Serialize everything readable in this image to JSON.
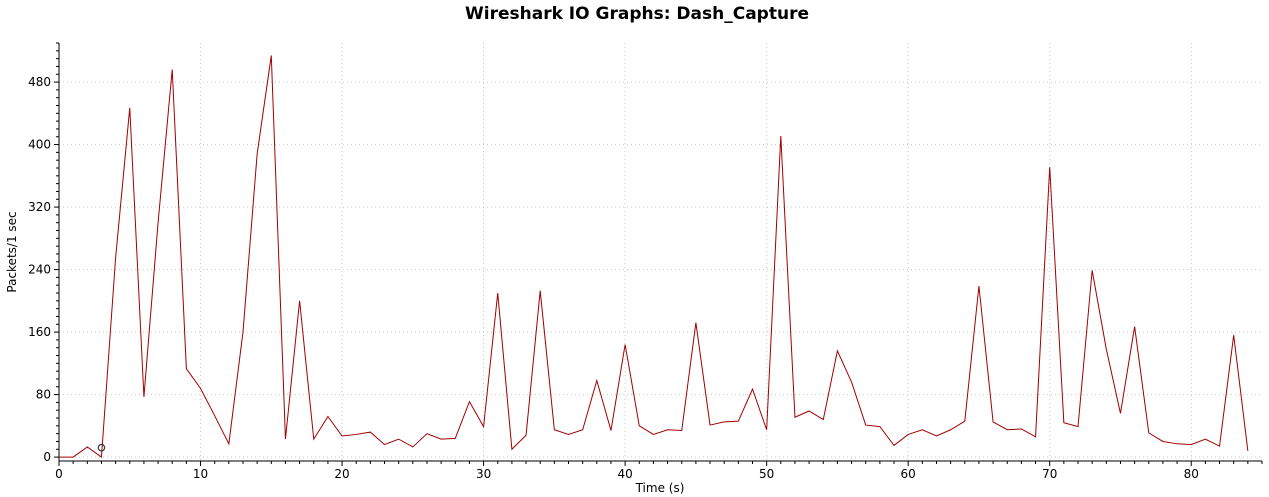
{
  "chart_data": {
    "type": "line",
    "title": "Wireshark IO Graphs: Dash_Capture",
    "xlabel": "Time (s)",
    "ylabel": "Packets/1 sec",
    "xlim": [
      0,
      85
    ],
    "ylim": [
      -5,
      530
    ],
    "x_ticks": [
      0,
      10,
      20,
      30,
      40,
      50,
      60,
      70,
      80
    ],
    "y_ticks": [
      0,
      80,
      160,
      240,
      320,
      400,
      480
    ],
    "grid": true,
    "series_color": "#a00000",
    "series": [
      {
        "x": [
          0,
          1,
          2,
          3,
          4,
          5,
          6,
          7,
          8,
          9,
          10,
          11,
          12,
          13,
          14,
          15,
          16,
          17,
          18,
          19,
          20,
          21,
          22,
          23,
          24,
          25,
          26,
          27,
          28,
          29,
          30,
          31,
          32,
          33,
          34,
          35,
          36,
          37,
          38,
          39,
          40,
          41,
          42,
          43,
          44,
          45,
          46,
          47,
          48,
          49,
          50,
          51,
          52,
          53,
          54,
          55,
          56,
          57,
          58,
          59,
          60,
          61,
          62,
          63,
          64,
          65,
          66,
          67,
          68,
          69,
          70,
          71,
          72,
          73,
          74,
          75,
          76,
          77,
          78,
          79,
          80,
          81,
          82,
          83,
          84
        ],
        "values": [
          0,
          0,
          13,
          0,
          255,
          447,
          77,
          300,
          496,
          113,
          88,
          53,
          17,
          160,
          388,
          514,
          23,
          200,
          23,
          52,
          27,
          29,
          32,
          16,
          23,
          13,
          30,
          23,
          24,
          71,
          39,
          210,
          10,
          28,
          213,
          35,
          29,
          35,
          98,
          34,
          144,
          40,
          29,
          35,
          34,
          172,
          41,
          45,
          46,
          87,
          35,
          411,
          51,
          59,
          48,
          136,
          96,
          41,
          39,
          15,
          29,
          35,
          27,
          35,
          46,
          219,
          45,
          35,
          36,
          26,
          371,
          44,
          39,
          239,
          138,
          56,
          167,
          31,
          20,
          17,
          16,
          23,
          14,
          156,
          8
        ]
      }
    ],
    "marker": {
      "x": 3,
      "y": 12
    }
  }
}
